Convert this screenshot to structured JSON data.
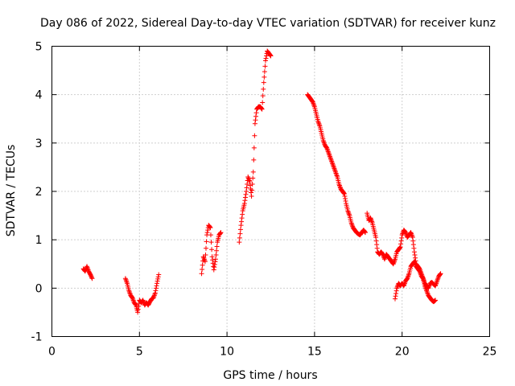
{
  "chart_data": {
    "type": "scatter",
    "title": "Day 086 of 2022, Sidereal Day-to-day VTEC variation (SDTVAR) for receiver kunz",
    "xlabel": "GPS time / hours",
    "ylabel": "SDTVAR / TECUs",
    "xlim": [
      0,
      25
    ],
    "ylim": [
      -1,
      5
    ],
    "xticks": [
      "0",
      "5",
      "10",
      "15",
      "20",
      "25"
    ],
    "yticks": [
      "-1",
      "0",
      "1",
      "2",
      "3",
      "4",
      "5"
    ],
    "grid": true,
    "marker": "+",
    "color": "#ff0000",
    "series": [
      {
        "name": "segment-1",
        "x": [
          1.8,
          1.9,
          2.0,
          2.1,
          2.2,
          2.3
        ],
        "y": [
          0.4,
          0.35,
          0.45,
          0.35,
          0.28,
          0.2
        ]
      },
      {
        "name": "segment-2",
        "x": [
          4.2,
          4.3,
          4.4,
          4.5,
          4.6,
          4.7,
          4.8,
          4.9,
          5.0,
          5.1,
          5.2,
          5.3,
          5.4,
          5.5,
          5.6,
          5.7,
          5.8,
          5.9,
          6.0,
          6.1
        ],
        "y": [
          0.2,
          0.1,
          -0.05,
          -0.15,
          -0.2,
          -0.3,
          -0.35,
          -0.5,
          -0.25,
          -0.3,
          -0.25,
          -0.35,
          -0.3,
          -0.35,
          -0.28,
          -0.22,
          -0.2,
          -0.1,
          0.1,
          0.28
        ]
      },
      {
        "name": "segment-3",
        "x": [
          8.55,
          8.65,
          8.75,
          8.85,
          8.95,
          9.05,
          9.15,
          9.25,
          9.35,
          9.45,
          9.55,
          9.65
        ],
        "y": [
          0.3,
          0.65,
          0.55,
          1.1,
          1.3,
          1.25,
          0.65,
          0.38,
          0.6,
          0.95,
          1.1,
          1.15
        ]
      },
      {
        "name": "segment-4",
        "x": [
          10.7,
          10.8,
          10.9,
          11.0,
          11.1,
          11.2,
          11.3,
          11.4,
          11.5,
          11.6,
          11.7,
          11.8,
          11.9,
          12.0,
          12.1,
          12.2,
          12.3,
          12.4,
          12.5
        ],
        "y": [
          0.95,
          1.3,
          1.6,
          1.75,
          2.0,
          2.3,
          2.2,
          1.9,
          2.4,
          3.4,
          3.7,
          3.75,
          3.75,
          3.7,
          4.25,
          4.7,
          4.9,
          4.85,
          4.8
        ]
      },
      {
        "name": "segment-5",
        "x": [
          14.6,
          14.7,
          14.8,
          14.9,
          15.0,
          15.1,
          15.2,
          15.3,
          15.4,
          15.5,
          15.6,
          15.7,
          15.8,
          15.9,
          16.0,
          16.1,
          16.2,
          16.3,
          16.4,
          16.5,
          16.6,
          16.7,
          16.8,
          16.9,
          17.0,
          17.1,
          17.2,
          17.3,
          17.4,
          17.5,
          17.6,
          17.7,
          17.8,
          17.9
        ],
        "y": [
          4.0,
          3.95,
          3.9,
          3.85,
          3.75,
          3.6,
          3.45,
          3.35,
          3.2,
          3.05,
          2.95,
          2.9,
          2.8,
          2.7,
          2.6,
          2.5,
          2.4,
          2.3,
          2.15,
          2.05,
          2.0,
          1.95,
          1.75,
          1.6,
          1.5,
          1.35,
          1.25,
          1.2,
          1.15,
          1.12,
          1.1,
          1.15,
          1.2,
          1.15
        ]
      },
      {
        "name": "segment-6",
        "x": [
          18.0,
          18.1,
          18.2,
          18.3,
          18.4,
          18.5,
          18.6,
          18.7,
          18.8,
          18.9,
          19.0,
          19.1,
          19.2,
          19.3,
          19.4,
          19.5,
          19.6,
          19.7,
          19.8,
          19.9,
          20.0,
          20.1,
          20.2,
          20.3,
          20.4,
          20.5,
          20.6,
          20.7,
          20.8,
          20.9,
          21.0,
          21.1,
          21.2,
          21.3,
          21.4,
          21.5,
          21.6,
          21.7,
          21.8,
          21.9,
          22.0,
          22.1,
          22.2
        ],
        "y": [
          1.55,
          1.4,
          1.45,
          1.35,
          1.2,
          1.05,
          0.75,
          0.7,
          0.75,
          0.7,
          0.6,
          0.7,
          0.65,
          0.6,
          0.55,
          0.5,
          0.6,
          0.75,
          0.8,
          0.85,
          1.1,
          1.2,
          1.15,
          1.05,
          1.1,
          1.15,
          1.05,
          0.75,
          0.5,
          0.45,
          0.4,
          0.3,
          0.2,
          0.1,
          0.05,
          0.0,
          0.1,
          0.12,
          0.08,
          0.05,
          0.15,
          0.25,
          0.3
        ]
      },
      {
        "name": "segment-7",
        "x": [
          19.6,
          19.7,
          19.8,
          19.9,
          20.0,
          20.1,
          20.2,
          20.3,
          20.4,
          20.5,
          20.6,
          20.7,
          20.8,
          20.9,
          21.0,
          21.1,
          21.2,
          21.3,
          21.4,
          21.5,
          21.6,
          21.7,
          21.8,
          21.9
        ],
        "y": [
          -0.22,
          0.0,
          0.1,
          0.05,
          0.1,
          0.05,
          0.15,
          0.2,
          0.3,
          0.45,
          0.5,
          0.55,
          0.45,
          0.4,
          0.35,
          0.25,
          0.2,
          0.05,
          -0.05,
          -0.15,
          -0.2,
          -0.25,
          -0.28,
          -0.25
        ]
      }
    ]
  }
}
